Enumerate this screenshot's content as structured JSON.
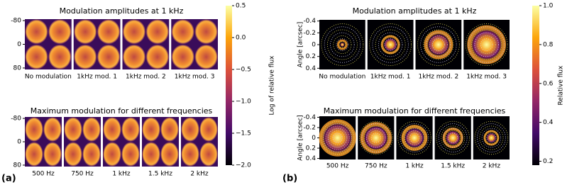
{
  "panels": [
    {
      "label": "(a)",
      "colorbar": {
        "label": "Log of relative flux",
        "lim": [
          -2.0,
          0.5
        ],
        "ticks": [
          {
            "value": 0.5,
            "label": "0.5"
          },
          {
            "value": 0.0,
            "label": "0.0"
          },
          {
            "value": -0.5,
            "label": "−0.5"
          },
          {
            "value": -1.0,
            "label": "−1.0"
          },
          {
            "value": -1.5,
            "label": "−1.5"
          },
          {
            "value": -2.0,
            "label": "−2.0"
          }
        ]
      },
      "rows": [
        {
          "title": "Modulation amplitudes at 1 kHz",
          "ylim": [
            -85,
            85
          ],
          "yticks": [
            {
              "value": -80,
              "label": "-80"
            },
            0,
            80
          ],
          "images": [
            "No modulation",
            "1kHz mod. 1",
            "1kHz mod. 2",
            "1kHz mod. 3"
          ]
        },
        {
          "title": "Maximum modulation for different frequencies",
          "ylim": [
            -85,
            85
          ],
          "yticks": [
            {
              "value": -80,
              "label": "-80"
            },
            0,
            80
          ],
          "images": [
            "500 Hz",
            "750 Hz",
            "1 kHz",
            "1.5 kHz",
            "2 kHz"
          ]
        }
      ]
    },
    {
      "label": "(b)",
      "colorbar": {
        "label": "Relative flux",
        "lim": [
          0.18,
          1.0
        ],
        "ticks": [
          {
            "value": 1.0,
            "label": "1.0"
          },
          0.8,
          0.6,
          0.4,
          0.2
        ]
      },
      "rows": [
        {
          "title": "Modulation amplitudes at 1 kHz",
          "ylabel": "Angle [arcsec]",
          "ylim": [
            -0.42,
            0.42
          ],
          "yticks": [
            -0.4,
            -0.2,
            0,
            0.2,
            0.4
          ],
          "images": [
            "No modulation",
            "1kHz mod. 1",
            "1kHz mod. 2",
            "1kHz mod. 3"
          ]
        },
        {
          "title": "Maximum modulation for different frequencies",
          "ylabel": "Angle [arcsec]",
          "ylim": [
            -0.42,
            0.42
          ],
          "yticks": [
            -0.4,
            -0.2,
            0,
            0.2,
            0.4
          ],
          "images": [
            "500 Hz",
            "750 Hz",
            "1 kHz",
            "1.5 kHz",
            "2 kHz"
          ]
        }
      ]
    }
  ]
}
